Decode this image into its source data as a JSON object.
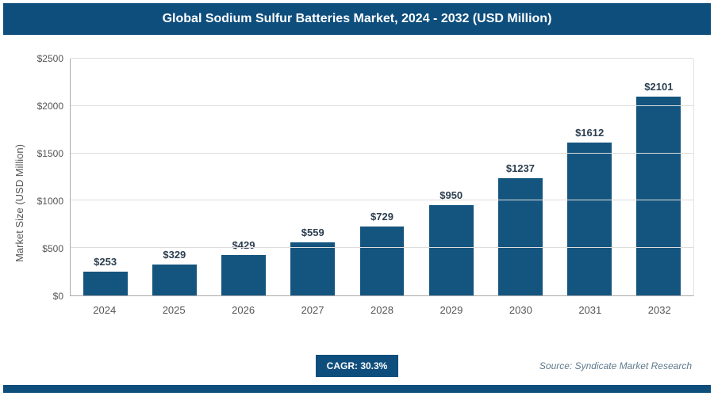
{
  "header": {
    "title": "Global Sodium Sulfur Batteries Market, 2024 - 2032 (USD Million)"
  },
  "chart_data": {
    "type": "bar",
    "title": "Global Sodium Sulfur Batteries Market, 2024 - 2032 (USD Million)",
    "categories": [
      "2024",
      "2025",
      "2026",
      "2027",
      "2028",
      "2029",
      "2030",
      "2031",
      "2032"
    ],
    "values": [
      253,
      329,
      429,
      559,
      729,
      950,
      1237,
      1612,
      2101
    ],
    "value_labels": [
      "$253",
      "$329",
      "$429",
      "$559",
      "$729",
      "$950",
      "$1237",
      "$1612",
      "$2101"
    ],
    "xlabel": "",
    "ylabel": "Market Size (USD Million)",
    "ylim": [
      0,
      2500
    ],
    "ytick_step": 500,
    "yticks": [
      "$0",
      "$500",
      "$1000",
      "$1500",
      "$2000",
      "$2500"
    ],
    "grid": "horizontal",
    "legend": "none",
    "bar_color": "#14557f"
  },
  "footer": {
    "cagr_label": "CAGR: 30.3%",
    "source": "Source: Syndicate Market Research"
  },
  "colors": {
    "accent": "#0e4e7d",
    "bar": "#14557f",
    "gridline": "#dddddd"
  }
}
